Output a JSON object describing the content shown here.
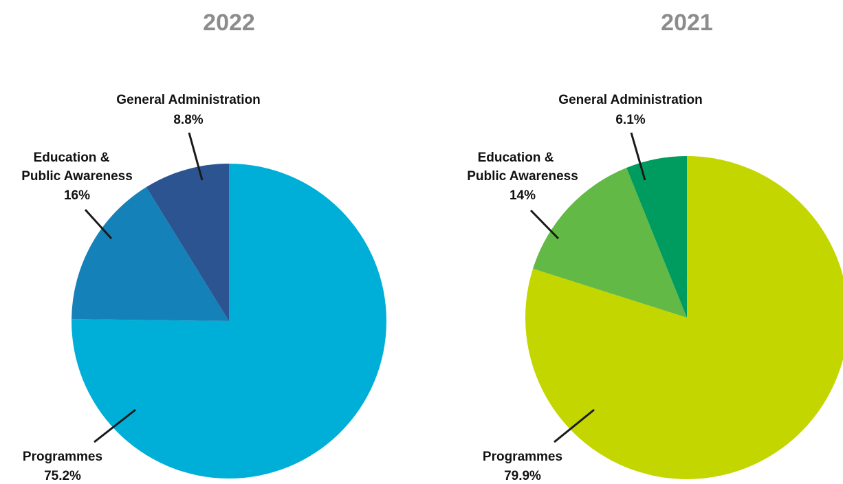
{
  "chart_data": [
    {
      "type": "pie",
      "title": "2022",
      "slices": [
        {
          "label": "Programmes",
          "value": 75.2,
          "display": "75.2%",
          "color": "#00afd7"
        },
        {
          "label": "Education & Public Awareness",
          "label_lines": [
            "Education &",
            "Public Awareness"
          ],
          "value": 16,
          "display": "16%",
          "color": "#1481b8"
        },
        {
          "label": "General Administration",
          "value": 8.8,
          "display": "8.8%",
          "color": "#2b5491"
        }
      ]
    },
    {
      "type": "pie",
      "title": "2021",
      "slices": [
        {
          "label": "Programmes",
          "value": 79.9,
          "display": "79.9%",
          "color": "#c4d600"
        },
        {
          "label": "Education & Public Awareness",
          "label_lines": [
            "Education &",
            "Public Awareness"
          ],
          "value": 14,
          "display": "14%",
          "color": "#62b946"
        },
        {
          "label": "General Administration",
          "value": 6.1,
          "display": "6.1%",
          "color": "#009b5e"
        }
      ]
    }
  ]
}
